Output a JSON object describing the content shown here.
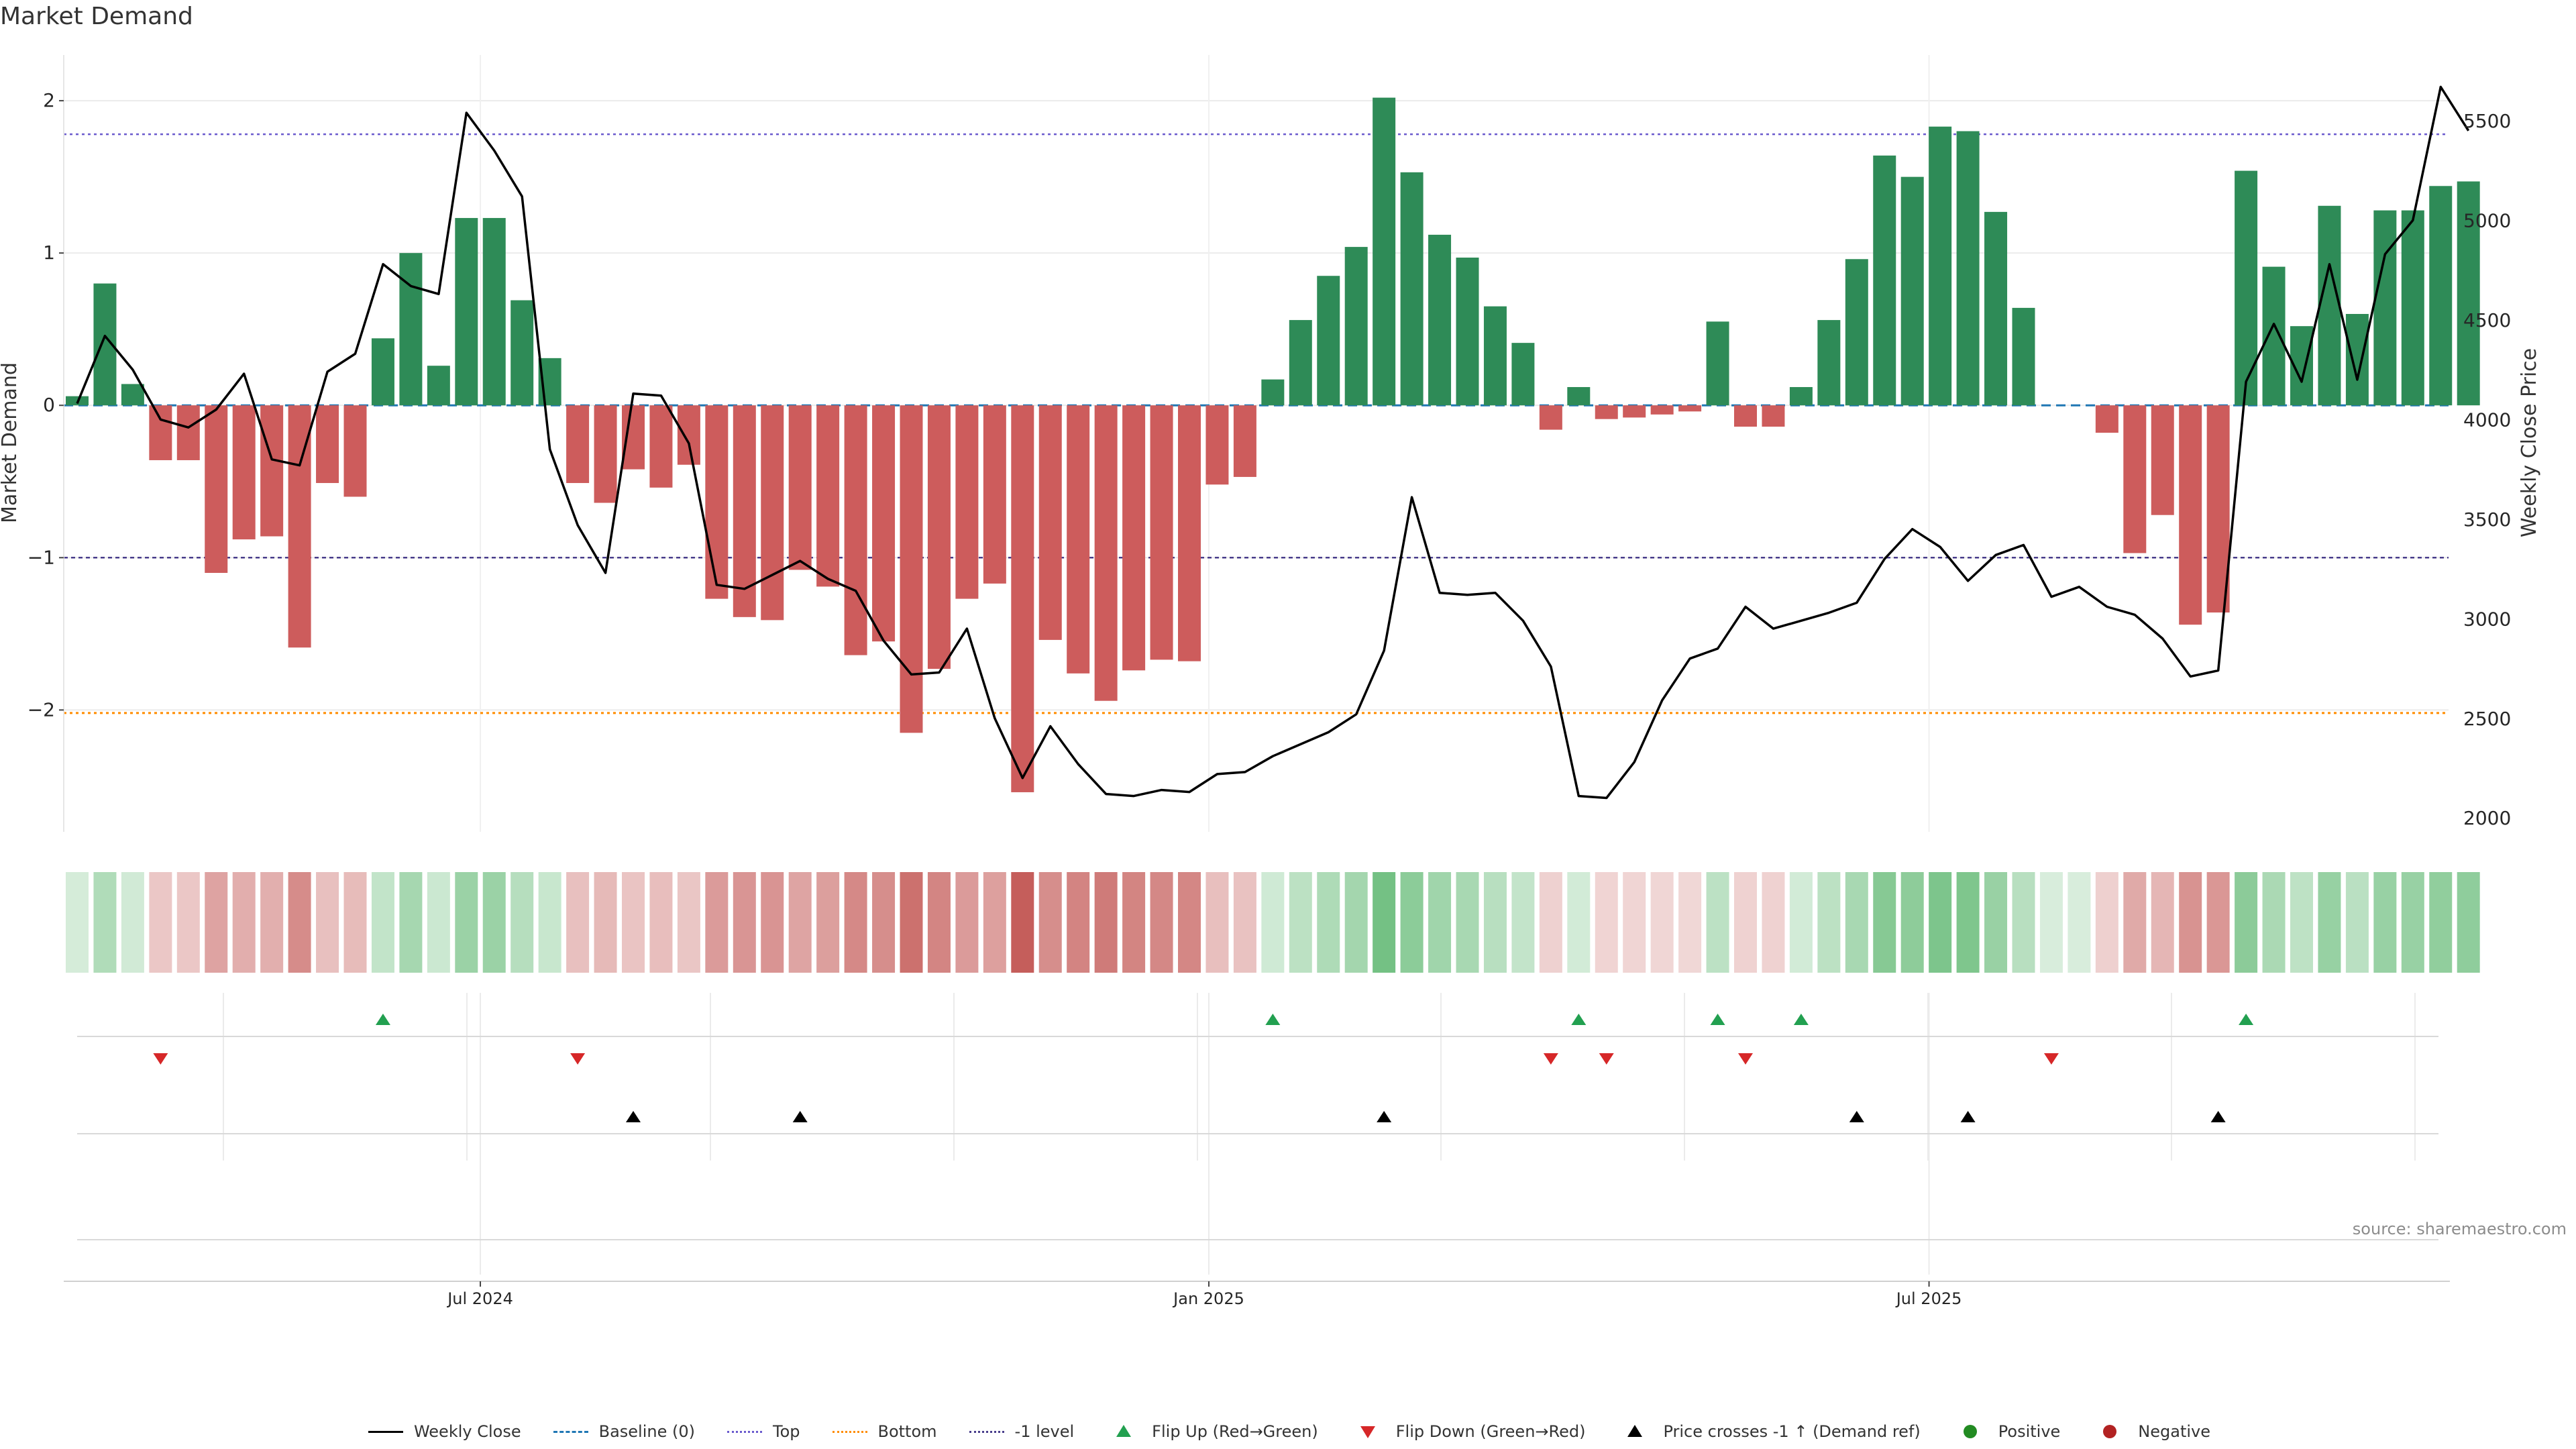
{
  "title": "Market Demand",
  "source": "source: sharemaestro.com",
  "colors": {
    "positive": "#2e8b57",
    "negative": "#cd5c5c",
    "price": "#000000",
    "top": "#6a5acd",
    "bottom": "#ff8c00",
    "minus1": "#483d8b",
    "baseline": "#1f77b4",
    "flip_up": "#22a050",
    "flip_down": "#d62728",
    "cross": "#000000",
    "dot_pos": "#228b22",
    "dot_neg": "#b22222"
  },
  "legend": [
    {
      "label": "Weekly Close",
      "type": "solid",
      "color": "#000000"
    },
    {
      "label": "Baseline (0)",
      "type": "dashed",
      "color": "#1f77b4"
    },
    {
      "label": "Top",
      "type": "dotted",
      "color": "#6a5acd"
    },
    {
      "label": "Bottom",
      "type": "dotted",
      "color": "#ff8c00"
    },
    {
      "label": "-1 level",
      "type": "dotted",
      "color": "#483d8b"
    },
    {
      "label": "Flip Up (Red→Green)",
      "type": "tri-up",
      "color": "#22a050"
    },
    {
      "label": "Flip Down (Green→Red)",
      "type": "tri-down",
      "color": "#d62728"
    },
    {
      "label": "Price crosses -1 ↑ (Demand ref)",
      "type": "tri-up",
      "color": "#000000"
    },
    {
      "label": "Positive",
      "type": "dot",
      "color": "#228b22"
    },
    {
      "label": "Negative",
      "type": "dot",
      "color": "#b22222"
    }
  ],
  "chart_data": {
    "type": "bar",
    "title": "Market Demand",
    "ylabel": "Market Demand",
    "y2label": "Weekly Close Price",
    "ylim": [
      -2.8,
      2.3
    ],
    "y2lim": [
      1930,
      5830
    ],
    "yticks": [
      {
        "value": 2,
        "label": "2"
      },
      {
        "value": 1,
        "label": "1"
      },
      {
        "value": 0,
        "label": "0"
      },
      {
        "value": -1,
        "label": "−1"
      },
      {
        "value": -2,
        "label": "−2"
      }
    ],
    "y2ticks": [
      2000,
      2500,
      3000,
      3500,
      4000,
      4500,
      5000,
      5500
    ],
    "xticks": [
      {
        "index": 14.5,
        "label": "Jul 2024"
      },
      {
        "index": 40.7,
        "label": "Jan 2025"
      },
      {
        "index": 66.6,
        "label": "Jul 2025"
      }
    ],
    "levels": {
      "top": 1.78,
      "bottom": -2.02,
      "minus1": -1.0,
      "baseline": 0
    },
    "demand": [
      0.06,
      0.8,
      0.14,
      -0.36,
      -0.36,
      -1.1,
      -0.88,
      -0.86,
      -1.59,
      -0.51,
      -0.6,
      0.44,
      1.0,
      0.26,
      1.23,
      1.23,
      0.69,
      0.31,
      -0.51,
      -0.64,
      -0.42,
      -0.54,
      -0.39,
      -1.27,
      -1.39,
      -1.41,
      -1.08,
      -1.19,
      -1.64,
      -1.55,
      -2.15,
      -1.73,
      -1.27,
      -1.17,
      -2.54,
      -1.54,
      -1.76,
      -1.94,
      -1.74,
      -1.67,
      -1.68,
      -0.52,
      -0.47,
      0.17,
      0.56,
      0.85,
      1.04,
      2.02,
      1.53,
      1.12,
      0.97,
      0.65,
      0.41,
      -0.16,
      0.12,
      -0.09,
      -0.08,
      -0.06,
      -0.04,
      0.55,
      -0.14,
      -0.14,
      0.12,
      0.56,
      0.96,
      1.64,
      1.5,
      1.83,
      1.8,
      1.27,
      0.64,
      0.0,
      0.0,
      -0.18,
      -0.97,
      -0.72,
      -1.44,
      -1.36,
      1.54,
      0.91,
      0.52,
      1.31,
      0.6,
      1.28,
      1.28,
      1.44,
      1.47
    ],
    "price": [
      4080,
      4420,
      4250,
      4000,
      3960,
      4050,
      4230,
      3800,
      3770,
      4240,
      4330,
      4780,
      4670,
      4630,
      5540,
      5350,
      5120,
      3850,
      3470,
      3230,
      4130,
      4120,
      3880,
      3170,
      3150,
      3220,
      3290,
      3200,
      3140,
      2890,
      2720,
      2730,
      2950,
      2500,
      2200,
      2460,
      2270,
      2120,
      2110,
      2140,
      2130,
      2220,
      2230,
      2310,
      2370,
      2430,
      2520,
      2840,
      3610,
      3130,
      3120,
      3130,
      2990,
      2760,
      2110,
      2100,
      2280,
      2590,
      2800,
      2850,
      3060,
      2950,
      2990,
      3030,
      3080,
      3300,
      3450,
      3360,
      3190,
      3320,
      3370,
      3110,
      3160,
      3060,
      3020,
      2900,
      2710,
      2740,
      4190,
      4480,
      4190,
      4780,
      4200,
      4830,
      5000,
      5670,
      5450
    ],
    "flip_up": [
      11,
      43,
      54,
      59,
      62,
      78
    ],
    "flip_down": [
      3,
      18,
      53,
      55,
      60,
      71
    ],
    "price_cross": [
      20,
      26,
      47,
      64,
      68,
      77
    ]
  }
}
